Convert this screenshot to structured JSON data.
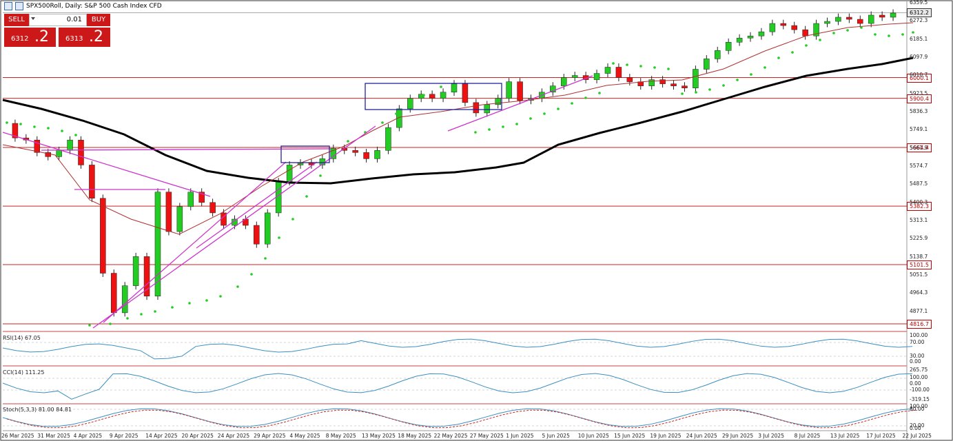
{
  "chart": {
    "symbol_line": "SPX500Roll, Daily:  S&P 500 Cash Index CFD",
    "price_axis": [
      "6359.5",
      "6272.3",
      "6185.1",
      "6097.9",
      "6010.7",
      "5923.5",
      "5836.3",
      "5749.1",
      "5661.9",
      "5574.7",
      "5487.5",
      "5400.3",
      "5313.1",
      "5225.9",
      "5138.7",
      "5051.5",
      "4964.3",
      "4877.1"
    ],
    "level_tags": [
      "6000.1",
      "5900.4",
      "5664.4",
      "5382.3",
      "5101.5",
      "4816.7"
    ],
    "current_price": "6312.2",
    "dates": [
      "26 Mar 2025",
      "31 Mar 2025",
      "4 Apr 2025",
      "9 Apr 2025",
      "14 Apr 2025",
      "20 Apr 2025",
      "24 Apr 2025",
      "29 Apr 2025",
      "4 May 2025",
      "8 May 2025",
      "13 May 2025",
      "18 May 2025",
      "22 May 2025",
      "27 May 2025",
      "1 Jun 2025",
      "5 Jun 2025",
      "10 Jun 2025",
      "15 Jun 2025",
      "19 Jun 2025",
      "24 Jun 2025",
      "29 Jun 2025",
      "3 Jul 2025",
      "8 Jul 2025",
      "13 Jul 2025",
      "17 Jul 2025",
      "22 Jul 2025"
    ]
  },
  "trade_panel": {
    "sell_label": "SELL",
    "buy_label": "BUY",
    "volume": "0.01",
    "bid_prefix": "6312",
    "bid_big": ".2",
    "ask_prefix": "6313",
    "ask_big": ".2"
  },
  "indicators": {
    "rsi": {
      "title": "RSI(14) 67.05",
      "levels": [
        "100.00",
        "70.00",
        "30.00",
        "0.00"
      ]
    },
    "cci": {
      "title": "CCI(14) 111.25",
      "levels": [
        "265.75",
        "100.00",
        "0.00",
        "-100.00",
        "-319.15"
      ]
    },
    "stoch": {
      "title": "Stoch(5,3,3) 81.00 84.81",
      "levels": [
        "100.00",
        "80.00",
        "20.00",
        "0.00"
      ]
    }
  },
  "colors": {
    "bull": "#22cc22",
    "bear": "#ee1111",
    "sar": "#22cc22",
    "ma_slow": "#000000",
    "ma_fast": "#b03030",
    "trend": "#cc33cc",
    "level": "#cc2222",
    "box": "#22229a",
    "indicator": "#3a8fc0"
  }
}
